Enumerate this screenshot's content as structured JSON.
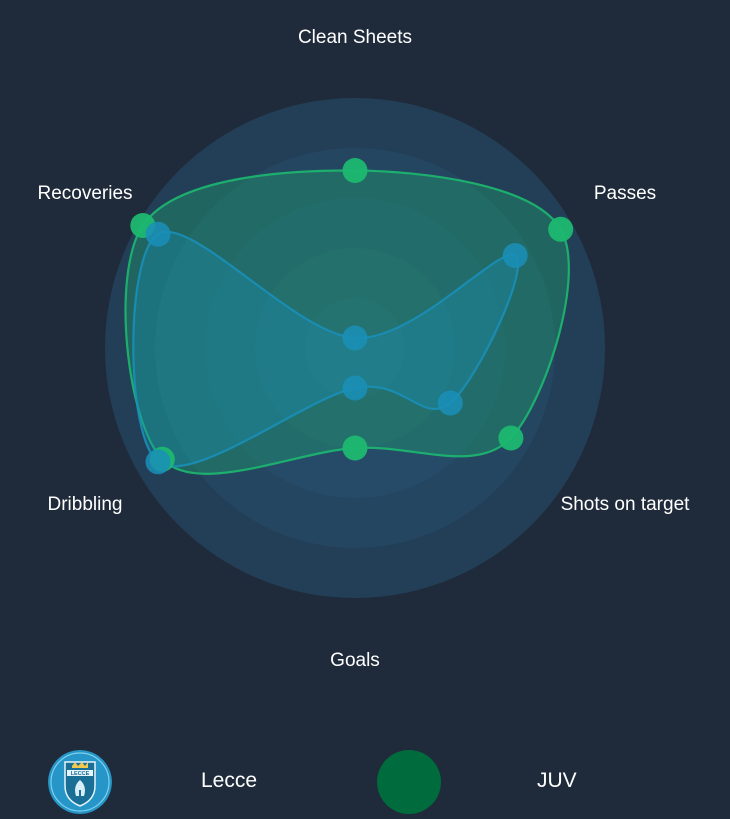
{
  "chart_data": {
    "type": "radar",
    "axes": [
      "Clean Sheets",
      "Passes",
      "Shots on target",
      "Goals",
      "Dribbling",
      "Recoveries"
    ],
    "series": [
      {
        "name": "Lecce",
        "values": [
          0.04,
          0.74,
          0.44,
          0.16,
          0.91,
          0.91
        ],
        "color": "#1a8fb8"
      },
      {
        "name": "JUV",
        "values": [
          0.71,
          0.95,
          0.72,
          0.4,
          0.89,
          0.98
        ],
        "color": "#1db870"
      }
    ],
    "rings": 5,
    "grid": true,
    "legend_position": "bottom"
  },
  "legend": {
    "team_a": {
      "label": "Lecce",
      "crest_text": "LECCE"
    },
    "team_b": {
      "label": "JUV"
    }
  },
  "colors": {
    "background": "#1f2b3a",
    "lecce": "#1a8fb8",
    "juv": "#1db870",
    "juv_badge": "#006b3d"
  }
}
